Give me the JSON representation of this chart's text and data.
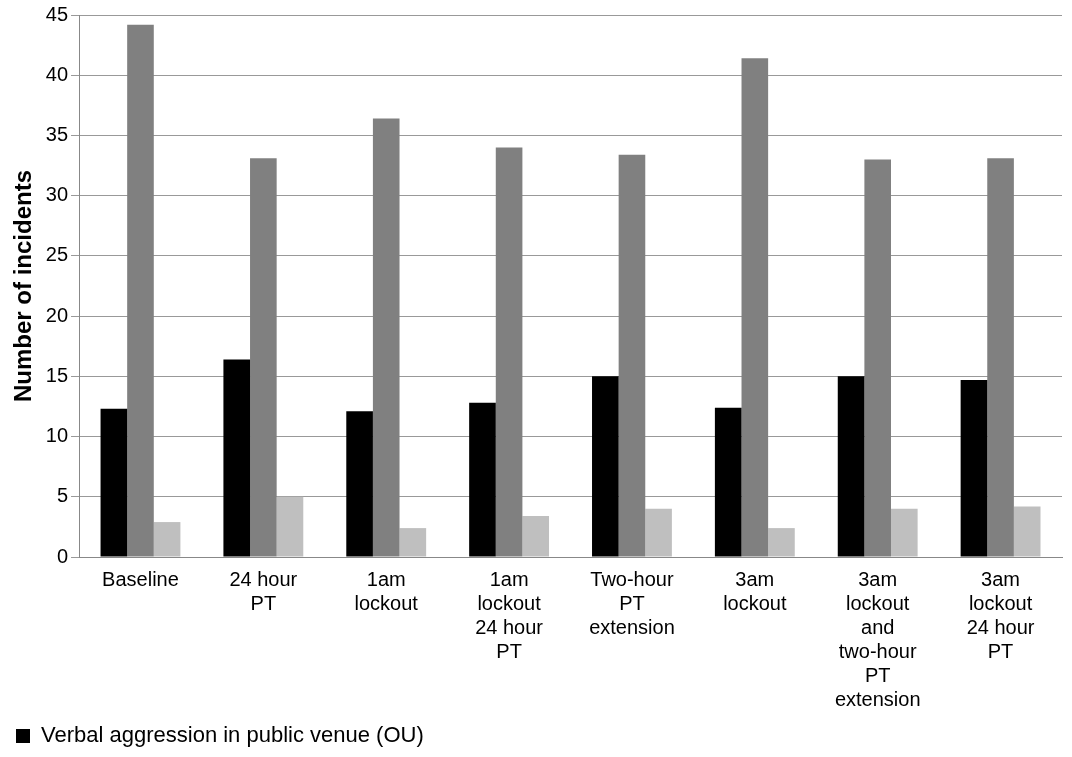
{
  "chart_data": {
    "type": "bar",
    "ylabel": "Number of incidents",
    "categories": [
      "Baseline",
      "24 hour PT",
      "1am lockout",
      "1am lockout 24 hour PT",
      "Two-hour PT extension",
      "3am lockout",
      "3am lockout and two-hour PT extension",
      "3am lockout 24 hour PT"
    ],
    "series": [
      {
        "name": "Verbal aggression in public venue (OU)",
        "color": "#000000",
        "values": [
          12.3,
          16.4,
          12.1,
          12.8,
          15.0,
          12.4,
          15.0,
          14.7
        ]
      },
      {
        "color": "#808080",
        "values": [
          44.2,
          33.1,
          36.4,
          34.0,
          33.4,
          41.4,
          33.0,
          33.1
        ]
      },
      {
        "color": "#bfbfbf",
        "values": [
          2.9,
          5.0,
          2.4,
          3.4,
          4.0,
          2.4,
          4.0,
          4.2
        ]
      }
    ],
    "ylim": [
      0,
      45
    ],
    "yticks": [
      0,
      5,
      10,
      15,
      20,
      25,
      30,
      35,
      40,
      45
    ],
    "grid": "y",
    "legend": "bottom left"
  }
}
